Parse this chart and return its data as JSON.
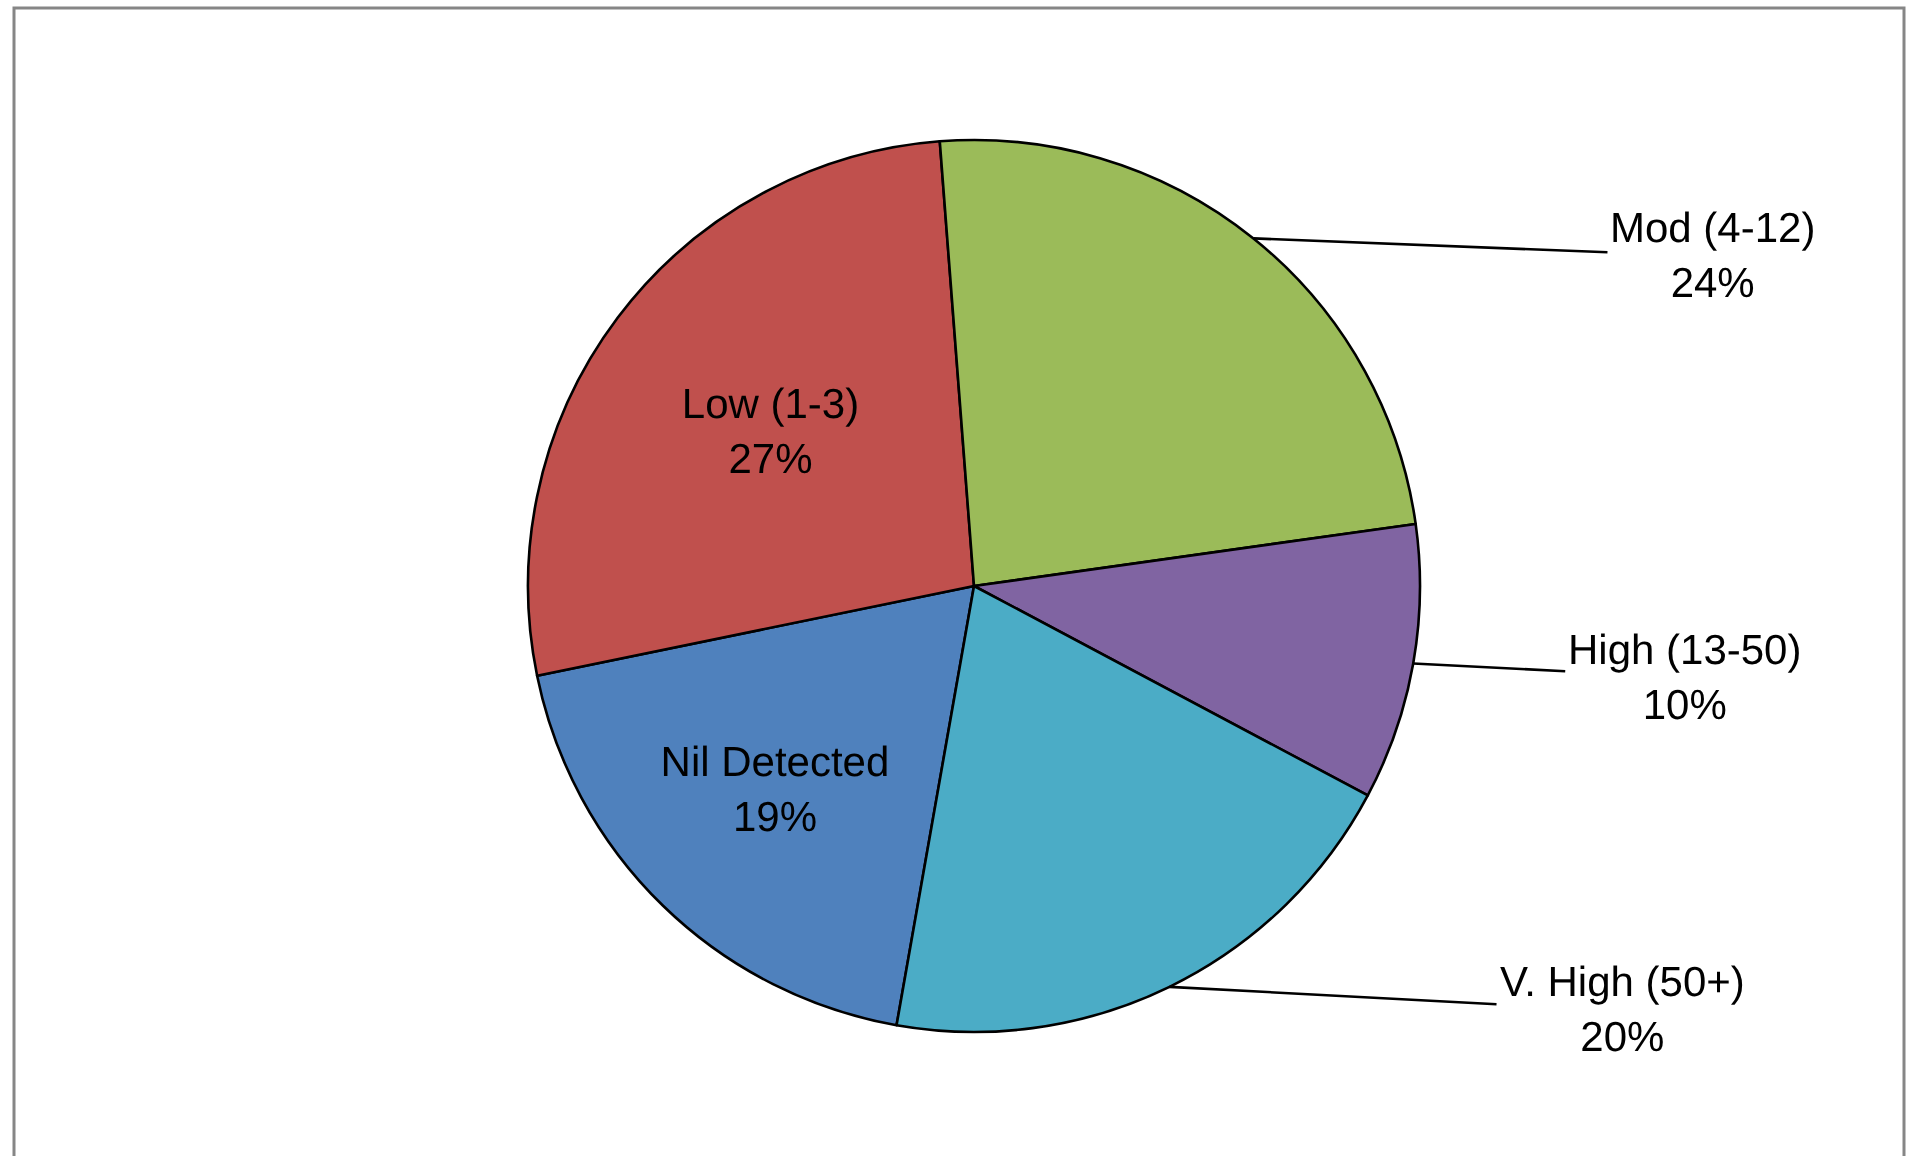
{
  "chart_data": {
    "type": "pie",
    "categories": [
      "Nil Detected",
      "Low (1-3)",
      "Mod (4-12)",
      "High (13-50)",
      "V. High (50+)"
    ],
    "values": [
      19,
      27,
      24,
      10,
      20
    ],
    "colors": [
      "#4f81bd",
      "#c0504d",
      "#9bbb59",
      "#8064a2",
      "#4bacc6"
    ],
    "value_labels": [
      "19%",
      "27%",
      "24%",
      "10%",
      "20%"
    ],
    "legend": false
  }
}
